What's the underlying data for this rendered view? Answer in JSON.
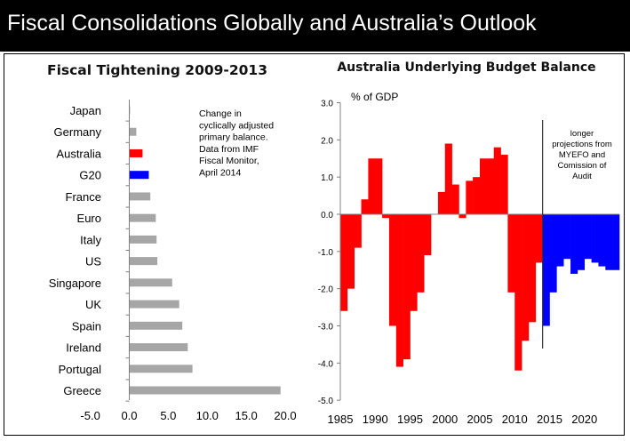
{
  "header": {
    "title": "Fiscal Consolidations Globally and Australia’s Outlook"
  },
  "colors": {
    "gray": "#a6a6a6",
    "red": "#ff0000",
    "blue": "#0000ff",
    "header_bg": "#000000"
  },
  "chart_data": [
    {
      "type": "bar",
      "orientation": "horizontal",
      "title": "Fiscal Tightening 2009-2013",
      "categories": [
        "Japan",
        "Germany",
        "Australia",
        "G20",
        "France",
        "Euro",
        "Italy",
        "US",
        "Singapore",
        "UK",
        "Spain",
        "Ireland",
        "Portugal",
        "Greece"
      ],
      "values": [
        0.1,
        0.9,
        1.7,
        2.5,
        2.7,
        3.4,
        3.5,
        3.6,
        5.5,
        6.4,
        6.8,
        7.5,
        8.1,
        19.4
      ],
      "bar_colors": [
        "gray",
        "gray",
        "red",
        "blue",
        "gray",
        "gray",
        "gray",
        "gray",
        "gray",
        "gray",
        "gray",
        "gray",
        "gray",
        "gray"
      ],
      "xlim": [
        -5,
        20
      ],
      "xticks": [
        "-5.0",
        "0.0",
        "5.0",
        "10.0",
        "15.0",
        "20.0"
      ],
      "annotation": [
        "Change in",
        "cyclically adjusted",
        "primary balance.",
        "Data from IMF",
        "Fiscal Monitor,",
        "April 2014"
      ]
    },
    {
      "type": "bar",
      "title": "Australia Underlying Budget Balance",
      "ylabel": "% of GDP",
      "ylim": [
        -5,
        3
      ],
      "yticks": [
        "3.0",
        "2.0",
        "1.0",
        "0.0",
        "-1.0",
        "-2.0",
        "-3.0",
        "-4.0",
        "-5.0"
      ],
      "xticks": [
        "1985",
        "1990",
        "1995",
        "2000",
        "2005",
        "2010",
        "2015",
        "2020"
      ],
      "x": [
        1985,
        1986,
        1987,
        1988,
        1989,
        1990,
        1991,
        1992,
        1993,
        1994,
        1995,
        1996,
        1997,
        1998,
        1999,
        2000,
        2001,
        2002,
        2003,
        2004,
        2005,
        2006,
        2007,
        2008,
        2009,
        2010,
        2011,
        2012,
        2013,
        2014,
        2015,
        2016,
        2017,
        2018,
        2019,
        2020,
        2021,
        2022,
        2023,
        2024
      ],
      "values": [
        -2.6,
        -2.0,
        -0.9,
        0.4,
        1.5,
        1.5,
        -0.1,
        -3.0,
        -4.1,
        -3.9,
        -2.6,
        -2.1,
        -1.1,
        0.0,
        0.6,
        1.9,
        0.8,
        -0.1,
        0.9,
        1.0,
        1.5,
        1.5,
        1.8,
        1.6,
        -2.1,
        -4.2,
        -3.4,
        -2.9,
        -1.3,
        -3.0,
        -2.1,
        -1.4,
        -1.2,
        -1.6,
        -1.5,
        -1.2,
        -1.3,
        -1.4,
        -1.5,
        -1.5
      ],
      "split_year": 2013.5,
      "series_colors": {
        "historical": "red",
        "projection": "blue"
      },
      "annotation": [
        "longer",
        "projections from",
        "MYEFO and",
        "Comission of",
        "Audit"
      ]
    }
  ]
}
